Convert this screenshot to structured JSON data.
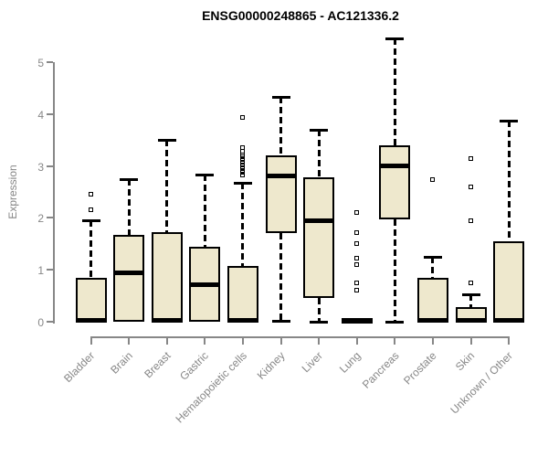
{
  "title": "ENSG00000248865 - AC121336.2",
  "y_axis": {
    "label": "Expression"
  },
  "chart_data": {
    "type": "boxplot",
    "title": "ENSG00000248865 - AC121336.2",
    "xlabel": "",
    "ylabel": "Expression",
    "ylim": [
      0,
      5.6
    ],
    "yticks": [
      0,
      1,
      2,
      3,
      4,
      5
    ],
    "grid": false,
    "legend": "none",
    "categories": [
      "Bladder",
      "Brain",
      "Breast",
      "Gastric",
      "Hematopoietic cells",
      "Kidney",
      "Liver",
      "Lung",
      "Pancreas",
      "Prostate",
      "Skin",
      "Unknown / Other"
    ],
    "series": [
      {
        "name": "Bladder",
        "q1": 0,
        "median": 0.03,
        "q3": 0.85,
        "whisker_low": 0,
        "whisker_high": 1.95,
        "outliers": [
          2.15,
          2.45
        ]
      },
      {
        "name": "Brain",
        "q1": 0,
        "median": 0.95,
        "q3": 1.68,
        "whisker_low": 0,
        "whisker_high": 2.75,
        "outliers": []
      },
      {
        "name": "Breast",
        "q1": 0,
        "median": 0.03,
        "q3": 1.73,
        "whisker_low": 0,
        "whisker_high": 3.5,
        "outliers": []
      },
      {
        "name": "Gastric",
        "q1": 0,
        "median": 0.72,
        "q3": 1.45,
        "whisker_low": 0,
        "whisker_high": 2.83,
        "outliers": []
      },
      {
        "name": "Hematopoietic cells",
        "q1": 0,
        "median": 0.03,
        "q3": 1.08,
        "whisker_low": 0,
        "whisker_high": 2.67,
        "outliers": [
          2.82,
          2.87,
          2.92,
          2.97,
          3.02,
          3.07,
          3.12,
          3.17,
          3.22,
          3.28,
          3.35,
          3.94
        ]
      },
      {
        "name": "Kidney",
        "q1": 1.7,
        "median": 2.8,
        "q3": 3.2,
        "whisker_low": 0.02,
        "whisker_high": 4.33,
        "outliers": []
      },
      {
        "name": "Liver",
        "q1": 0.45,
        "median": 1.94,
        "q3": 2.79,
        "whisker_low": 0,
        "whisker_high": 3.7,
        "outliers": []
      },
      {
        "name": "Lung",
        "q1": 0,
        "median": 0.02,
        "q3": 0.04,
        "whisker_low": 0,
        "whisker_high": 0.04,
        "outliers": [
          0.6,
          0.74,
          1.1,
          1.23,
          1.5,
          1.71,
          2.1
        ]
      },
      {
        "name": "Pancreas",
        "q1": 1.97,
        "median": 3.0,
        "q3": 3.4,
        "whisker_low": 0,
        "whisker_high": 5.45,
        "outliers": []
      },
      {
        "name": "Prostate",
        "q1": 0,
        "median": 0.03,
        "q3": 0.85,
        "whisker_low": 0,
        "whisker_high": 1.25,
        "outliers": [
          2.73
        ]
      },
      {
        "name": "Skin",
        "q1": 0,
        "median": 0.03,
        "q3": 0.28,
        "whisker_low": 0,
        "whisker_high": 0.53,
        "outliers": [
          0.74,
          1.94,
          2.6,
          3.15
        ]
      },
      {
        "name": "Unknown / Other",
        "q1": 0,
        "median": 0.03,
        "q3": 1.55,
        "whisker_low": 0,
        "whisker_high": 3.87,
        "outliers": []
      }
    ],
    "colors": {
      "box_fill": "#EEE8CD",
      "box_border": "#000000",
      "median": "#000000",
      "whisker": "#000000",
      "axis": "#878787",
      "tick_label": "#878787",
      "title": "#000000"
    }
  }
}
